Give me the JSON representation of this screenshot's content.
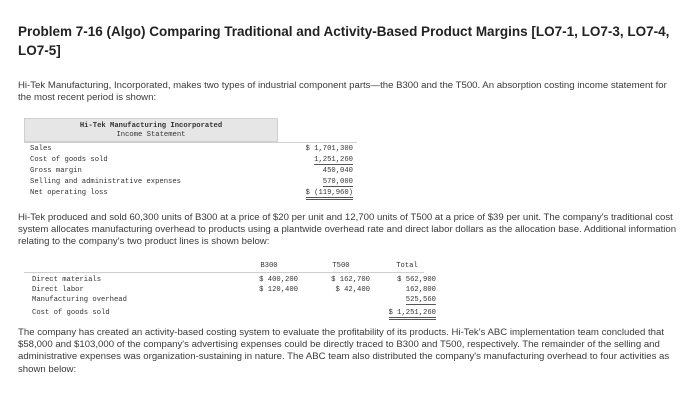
{
  "title": "Problem 7-16 (Algo) Comparing Traditional and Activity-Based Product Margins [LO7-1, LO7-3, LO7-4, LO7-5]",
  "intro": "Hi-Tek Manufacturing, Incorporated, makes two types of industrial component parts—the B300 and the T500. An absorption costing income statement for the most recent period is shown:",
  "income_statement": {
    "company": "Hi-Tek Manufacturing Incorporated",
    "statement": "Income Statement",
    "rows": [
      {
        "label": "Sales",
        "value": "$ 1,701,300"
      },
      {
        "label": "Cost of goods sold",
        "value": "1,251,260"
      },
      {
        "label": "Gross margin",
        "value": "450,040"
      },
      {
        "label": "Selling and administrative expenses",
        "value": "570,000"
      },
      {
        "label": "Net operating loss",
        "value": "$ (119,960)"
      }
    ]
  },
  "production_text": "Hi-Tek produced and sold 60,300 units of B300 at a price of $20 per unit and 12,700 units of T500 at a price of $39 per unit. The company's traditional cost system allocates manufacturing overhead to products using a plantwide overhead rate and direct labor dollars as the allocation base. Additional information relating to the company's two product lines is shown below:",
  "cost_table": {
    "headers": [
      "B300",
      "T500",
      "Total"
    ],
    "rows": [
      {
        "label": "Direct materials",
        "b300": "$ 400,200",
        "t500": "$ 162,700",
        "total": "$ 562,900"
      },
      {
        "label": "Direct labor",
        "b300": "$ 120,400",
        "t500": "$ 42,400",
        "total": "162,800"
      },
      {
        "label": "Manufacturing overhead",
        "b300": "",
        "t500": "",
        "total": "525,560"
      },
      {
        "label": "Cost of goods sold",
        "b300": "",
        "t500": "",
        "total": "$ 1,251,260"
      }
    ]
  },
  "abc_text": "The company has created an activity-based costing system to evaluate the profitability of its products. Hi-Tek's ABC implementation team concluded that $58,000 and $103,000 of the company's advertising expenses could be directly traced to B300 and T500, respectively. The remainder of the selling and administrative expenses was organization-sustaining in nature. The ABC team also distributed the company's manufacturing overhead to four activities as shown below:"
}
